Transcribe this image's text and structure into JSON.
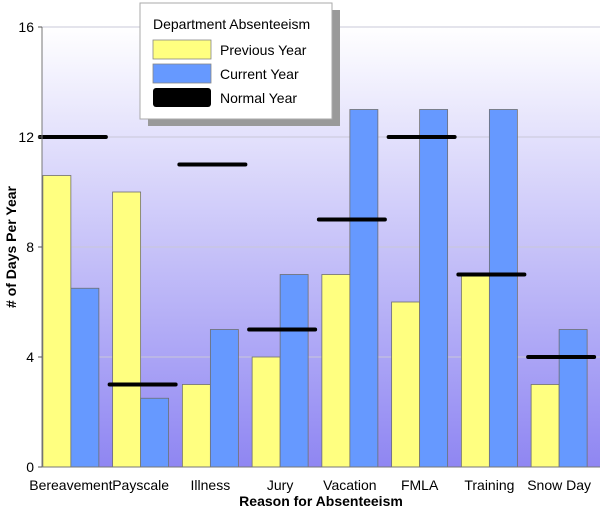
{
  "chart_data": {
    "type": "bar",
    "title": "",
    "xlabel": "Reason for Absenteeism",
    "ylabel": "# of Days Per Year",
    "ylim": [
      0,
      16
    ],
    "yticks": [
      0,
      4,
      8,
      12,
      16
    ],
    "grid": true,
    "categories": [
      "Bereavement",
      "Payscale",
      "Illness",
      "Jury",
      "Vacation",
      "FMLA",
      "Training",
      "Snow Day"
    ],
    "series": [
      {
        "name": "Previous Year",
        "kind": "bar",
        "color": "#ffff80",
        "values": [
          10.6,
          10,
          3,
          4,
          7,
          6,
          7,
          3
        ]
      },
      {
        "name": "Current Year",
        "kind": "bar",
        "color": "#6699ff",
        "values": [
          6.5,
          2.5,
          5,
          7,
          13,
          13,
          13,
          5
        ]
      },
      {
        "name": "Normal Year",
        "kind": "marker",
        "color": "#000000",
        "values": [
          12,
          3,
          11,
          5,
          9,
          12,
          7,
          4
        ]
      }
    ],
    "legend": {
      "title": "Department Absenteeism",
      "position": "top-left",
      "entries": [
        "Previous Year",
        "Current Year",
        "Normal Year"
      ]
    }
  }
}
